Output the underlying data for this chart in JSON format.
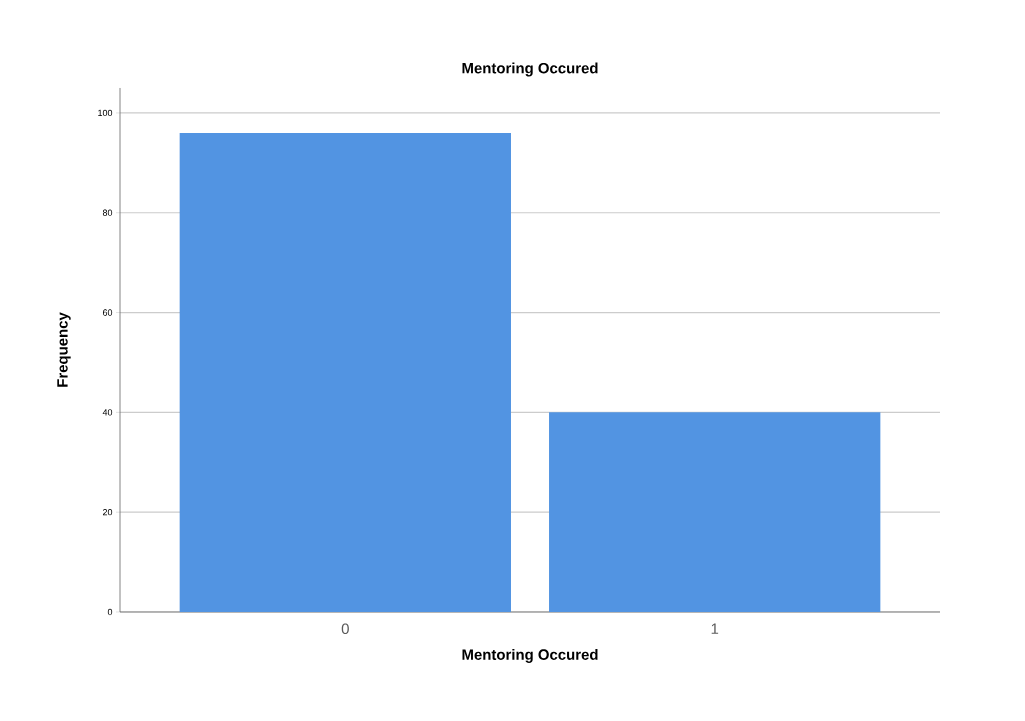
{
  "chart_data": {
    "type": "bar",
    "title": "Mentoring Occured",
    "xlabel": "Mentoring Occured",
    "ylabel": "Frequency",
    "categories": [
      "0",
      "1"
    ],
    "values": [
      96,
      40
    ],
    "color": "#5294e2",
    "ylim": [
      0,
      105
    ],
    "yticks": [
      0,
      20,
      40,
      60,
      80,
      100
    ],
    "grid": "y"
  }
}
